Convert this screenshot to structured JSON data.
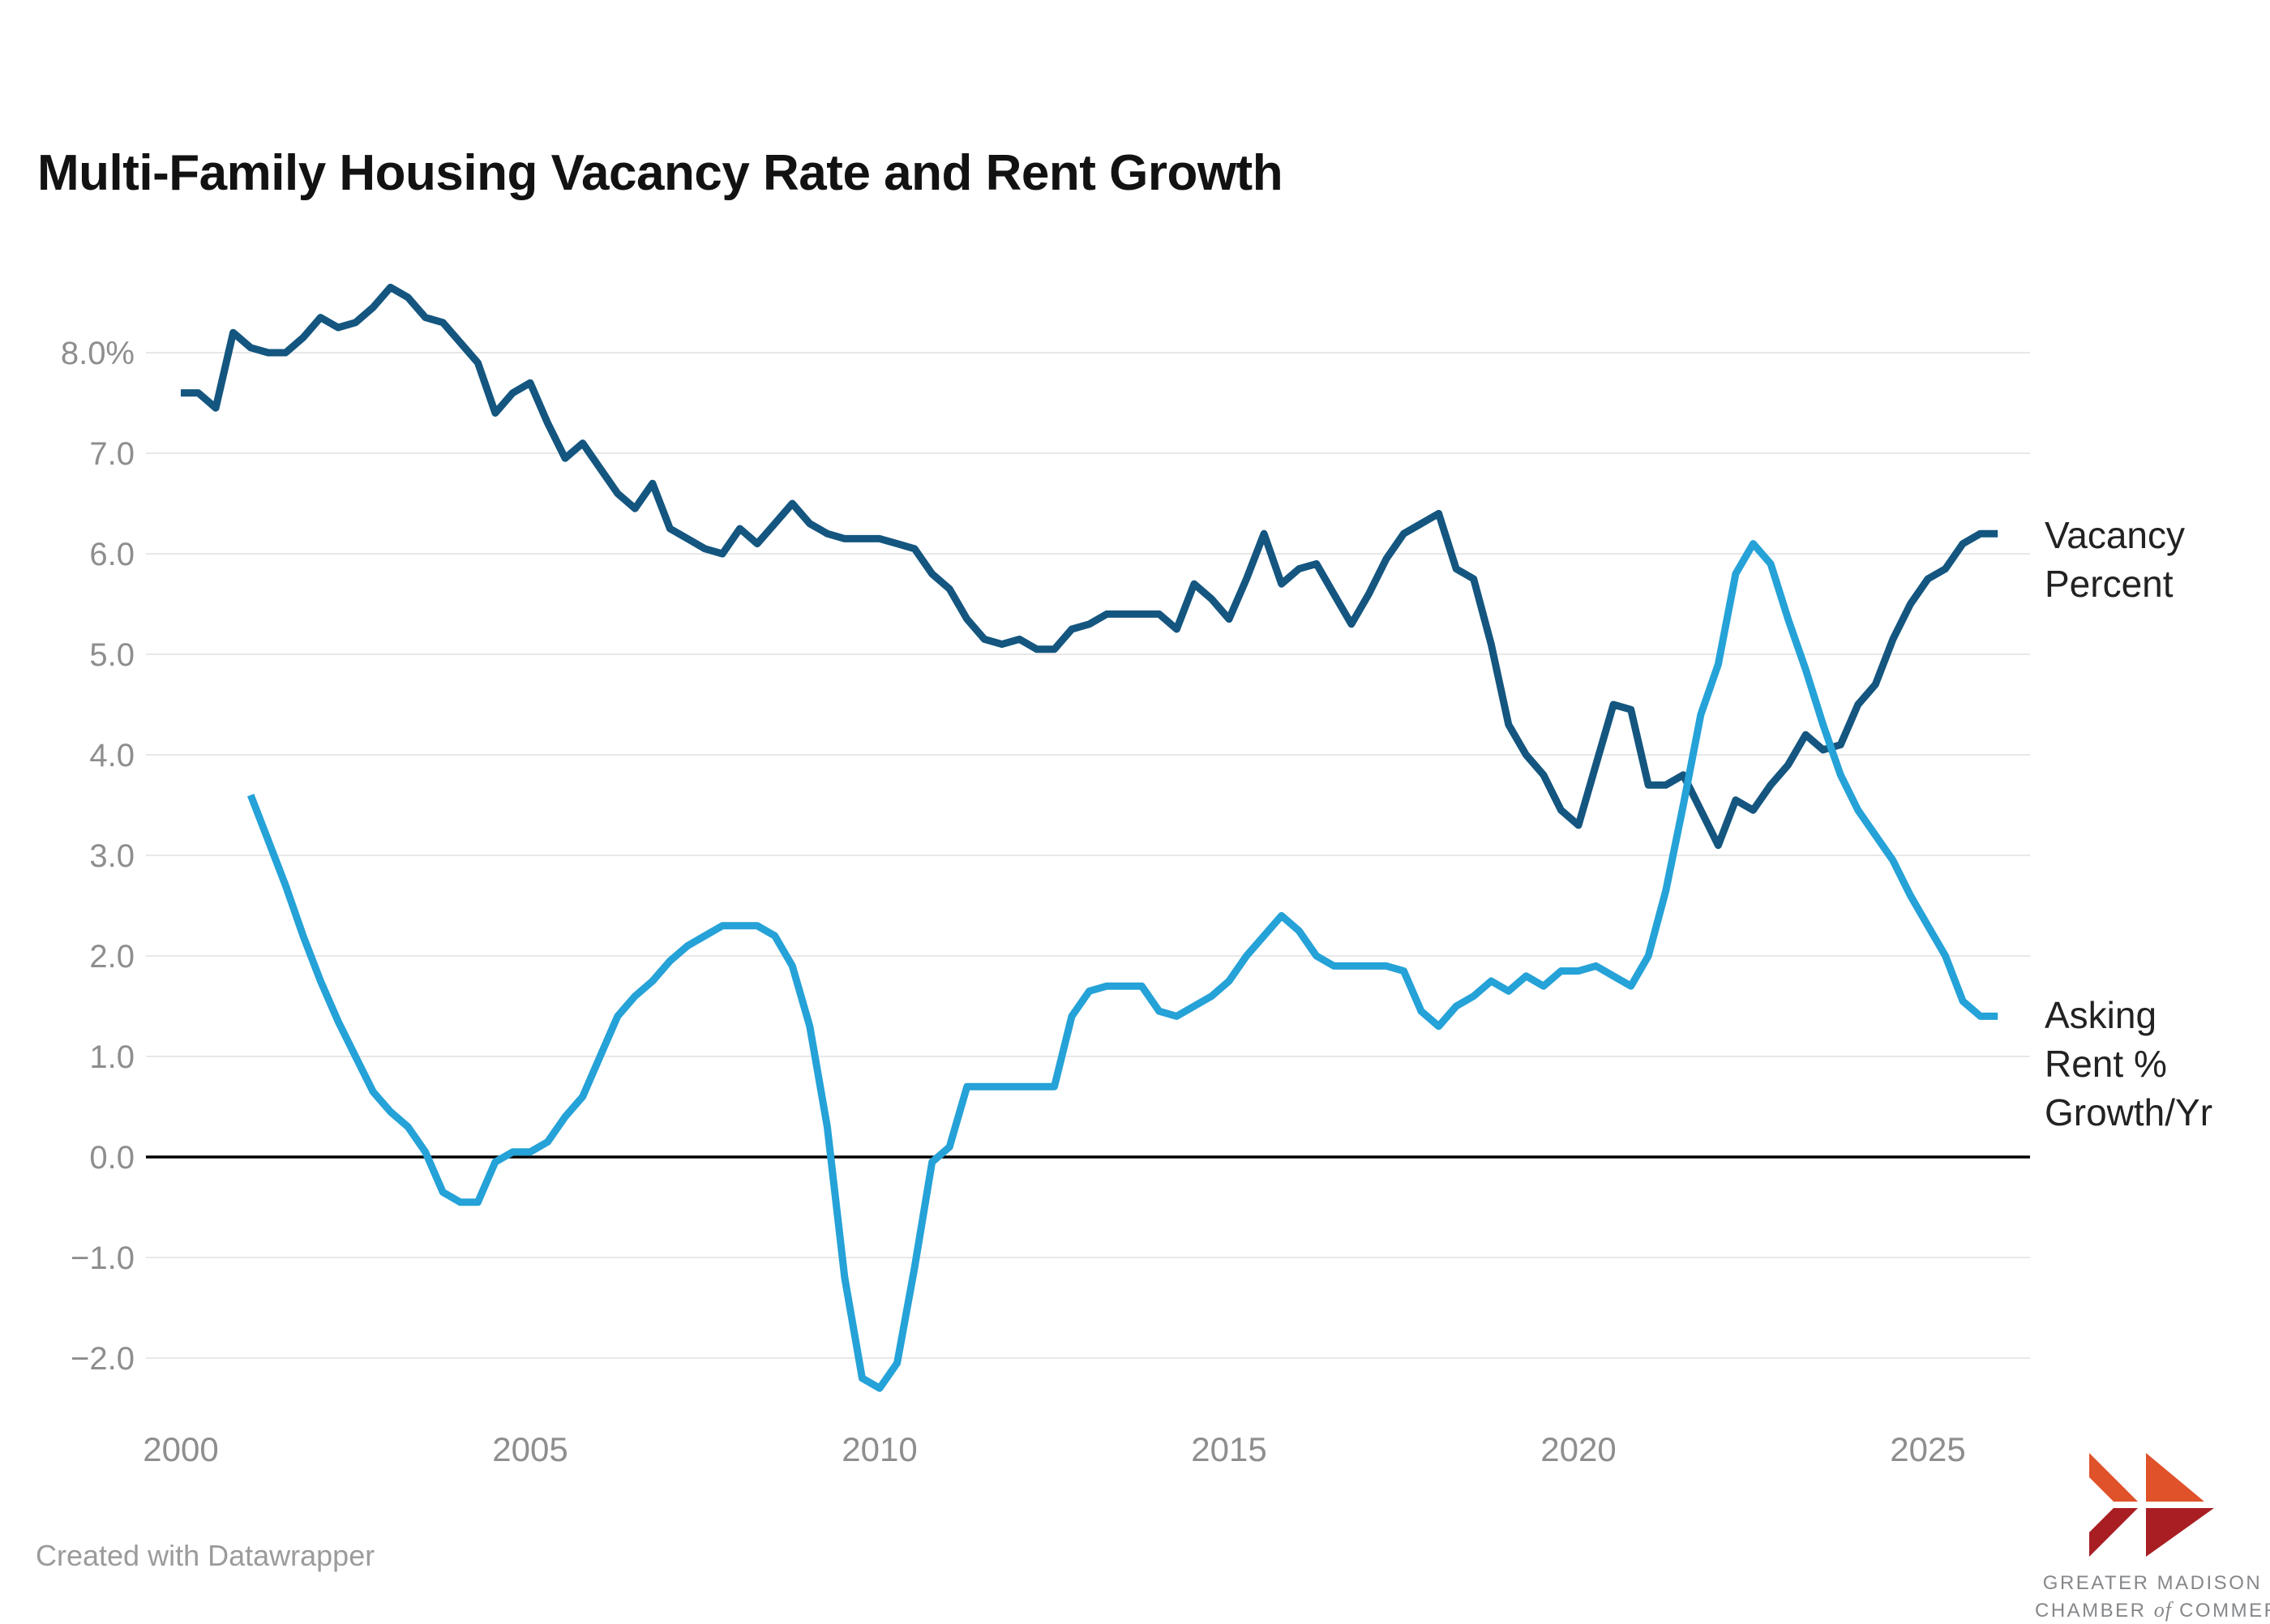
{
  "title": "Multi-Family Housing Vacancy Rate and Rent Growth",
  "footer_credit": "Created with Datawrapper",
  "series_labels": {
    "vacancy": "Vacancy Percent",
    "rent": "Asking Rent % Growth/Yr"
  },
  "logo": {
    "line1": "GREATER MADISON",
    "line2_a": "CHAMBER",
    "line2_of": "of",
    "line2_b": "COMMERCE",
    "colors": {
      "orange": "#E0522A",
      "red": "#A81E23",
      "text": "#85878A"
    }
  },
  "chart_data": {
    "type": "line",
    "title": "Multi-Family Housing Vacancy Rate and Rent Growth",
    "xlabel": "",
    "ylabel": "",
    "grid": "horizontal",
    "legend_position": "right-of-line-ends",
    "xlim": [
      1999.5,
      2026.45
    ],
    "ylim": [
      -2.6,
      8.85
    ],
    "x_ticks": [
      {
        "label": "2000",
        "value": 2000
      },
      {
        "label": "2005",
        "value": 2005
      },
      {
        "label": "2010",
        "value": 2010
      },
      {
        "label": "2015",
        "value": 2015
      },
      {
        "label": "2020",
        "value": 2020
      },
      {
        "label": "2025",
        "value": 2025
      }
    ],
    "y_ticks": [
      {
        "label": "8.0%",
        "value": 8
      },
      {
        "label": "7.0",
        "value": 7
      },
      {
        "label": "6.0",
        "value": 6
      },
      {
        "label": "5.0",
        "value": 5
      },
      {
        "label": "4.0",
        "value": 4
      },
      {
        "label": "3.0",
        "value": 3
      },
      {
        "label": "2.0",
        "value": 2
      },
      {
        "label": "1.0",
        "value": 1
      },
      {
        "label": "0.0",
        "value": 0
      },
      {
        "label": "−1.0",
        "value": -1
      },
      {
        "label": "−2.0",
        "value": -2
      }
    ],
    "zero_line": {
      "value": 0,
      "color": "#000000"
    },
    "grid_color": "#E8E8E8",
    "series": [
      {
        "name": "Vacancy Percent",
        "color": "#14567F",
        "start_year": 2000,
        "step_years": 0.25,
        "values": [
          7.6,
          7.6,
          7.45,
          8.2,
          8.05,
          8.0,
          8.0,
          8.15,
          8.35,
          8.25,
          8.3,
          8.45,
          8.65,
          8.55,
          8.35,
          8.3,
          8.1,
          7.9,
          7.4,
          7.6,
          7.7,
          7.3,
          6.95,
          7.1,
          6.85,
          6.6,
          6.45,
          6.7,
          6.25,
          6.15,
          6.05,
          6.0,
          6.25,
          6.1,
          6.3,
          6.5,
          6.3,
          6.2,
          6.15,
          6.15,
          6.15,
          6.1,
          6.05,
          5.8,
          5.65,
          5.35,
          5.15,
          5.1,
          5.15,
          5.05,
          5.05,
          5.25,
          5.3,
          5.4,
          5.4,
          5.4,
          5.4,
          5.25,
          5.7,
          5.55,
          5.35,
          5.75,
          6.2,
          5.7,
          5.85,
          5.9,
          5.6,
          5.3,
          5.6,
          5.95,
          6.2,
          6.3,
          6.4,
          5.85,
          5.75,
          5.1,
          4.3,
          4.0,
          3.8,
          3.45,
          3.3,
          3.9,
          4.5,
          4.45,
          3.7,
          3.7,
          3.8,
          3.45,
          3.1,
          3.55,
          3.45,
          3.7,
          3.9,
          4.2,
          4.05,
          4.1,
          4.5,
          4.7,
          5.15,
          5.5,
          5.75,
          5.85,
          6.1,
          6.2,
          6.2
        ]
      },
      {
        "name": "Asking Rent % Growth/Yr",
        "color": "#25A2D7",
        "start_year": 2001,
        "step_years": 0.25,
        "values": [
          3.6,
          3.15,
          2.7,
          2.2,
          1.75,
          1.35,
          1.0,
          0.65,
          0.45,
          0.3,
          0.05,
          -0.35,
          -0.45,
          -0.45,
          -0.05,
          0.05,
          0.05,
          0.15,
          0.4,
          0.6,
          1.0,
          1.4,
          1.6,
          1.75,
          1.95,
          2.1,
          2.2,
          2.3,
          2.3,
          2.3,
          2.2,
          1.9,
          1.3,
          0.3,
          -1.2,
          -2.2,
          -2.3,
          -2.05,
          -1.1,
          -0.05,
          0.1,
          0.7,
          0.7,
          0.7,
          0.7,
          0.7,
          0.7,
          1.4,
          1.65,
          1.7,
          1.7,
          1.7,
          1.45,
          1.4,
          1.5,
          1.6,
          1.75,
          2.0,
          2.2,
          2.4,
          2.25,
          2.0,
          1.9,
          1.9,
          1.9,
          1.9,
          1.85,
          1.45,
          1.3,
          1.5,
          1.6,
          1.75,
          1.65,
          1.8,
          1.7,
          1.85,
          1.85,
          1.9,
          1.8,
          1.7,
          2.0,
          2.65,
          3.5,
          4.4,
          4.9,
          5.8,
          6.1,
          5.9,
          5.35,
          4.85,
          4.3,
          3.8,
          3.45,
          3.2,
          2.95,
          2.6,
          2.3,
          2.0,
          1.55,
          1.4,
          1.4
        ]
      }
    ]
  }
}
